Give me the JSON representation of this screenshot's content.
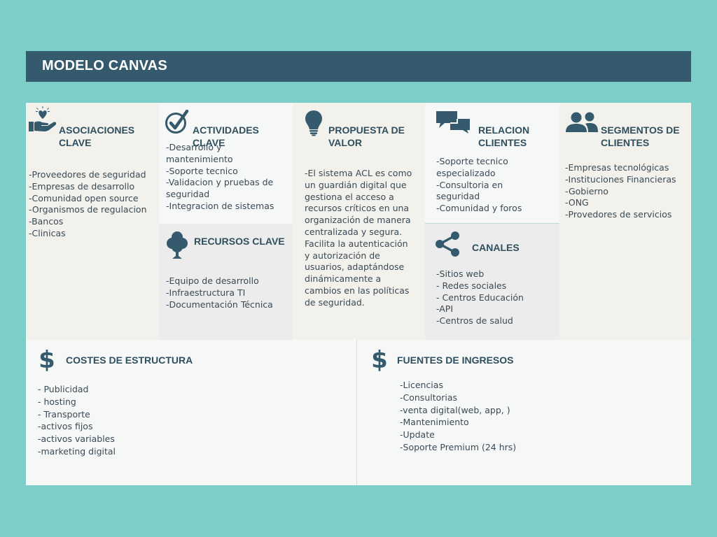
{
  "title": "MODELO CANVAS",
  "colors": {
    "background": "#7dcdc8",
    "header": "#365a6d",
    "heading": "#2f4f5f",
    "icon": "#365a6d"
  },
  "asociaciones": {
    "icon": "hand-heart-icon",
    "heading": "ASOCIACIONES\nCLAVE",
    "items": [
      "-Proveedores de   seguridad",
      "-Empresas de desarrollo",
      "-Comunidad open source",
      "-Organismos de   regulacion",
      "-Bancos",
      "-Clinicas"
    ]
  },
  "actividades": {
    "icon": "check-circle-icon",
    "heading": "ACTIVIDADES CLAVE",
    "items": [
      "-Desarrollo y\nmantenimiento",
      "-Soporte tecnico",
      "-Validacion y pruebas de\nseguridad",
      "-Integracion  de sistemas"
    ]
  },
  "recursos": {
    "icon": "tree-icon",
    "heading": "RECURSOS CLAVE",
    "items": [
      "-Equipo de desarrollo",
      "-Infraestructura TI",
      "-Documentación Técnica"
    ]
  },
  "propuesta": {
    "icon": "lightbulb-icon",
    "heading": "PROPUESTA DE\nVALOR",
    "text": "-El sistema ACL es como\nun guardián digital que\ngestiona el acceso a\nrecursos críticos en una\norganización de manera\ncentralizada y segura.\nFacilita la autenticación\ny autorización de\nusuarios, adaptándose\ndinámicamente a\ncambios en las políticas\nde seguridad."
  },
  "relacion": {
    "icon": "chat-bubbles-icon",
    "heading": "RELACION\nCLIENTES",
    "items": [
      "-Soporte tecnico\nespecializado",
      "-Consultoria en\nseguridad",
      "-Comunidad y foros"
    ]
  },
  "canales": {
    "icon": "share-icon",
    "heading": "CANALES",
    "items": [
      "-Sitios web",
      "- Redes sociales",
      "- Centros Educación",
      "-API",
      "-Centros de salud"
    ]
  },
  "segmentos": {
    "icon": "people-icon",
    "heading": "SEGMENTOS DE\nCLIENTES",
    "items": [
      "-Empresas tecnológicas",
      "-Instituciones Financieras",
      "-Gobierno",
      "-ONG",
      "-Provedores de servicios"
    ]
  },
  "costes": {
    "icon": "dollar-icon",
    "heading": "COSTES DE ESTRUCTURA",
    "items": [
      "- Publicidad",
      "- hosting",
      "- Transporte",
      "-activos fijos",
      "-activos variables",
      "-marketing digital"
    ]
  },
  "fuentes": {
    "icon": "dollar-icon",
    "heading": "FUENTES DE INGRESOS",
    "items": [
      "-Licencias",
      "-Consultorias",
      "-venta digital(web, app, )",
      "-Mantenimiento",
      "-Update",
      "-Soporte Premium (24 hrs)"
    ]
  }
}
